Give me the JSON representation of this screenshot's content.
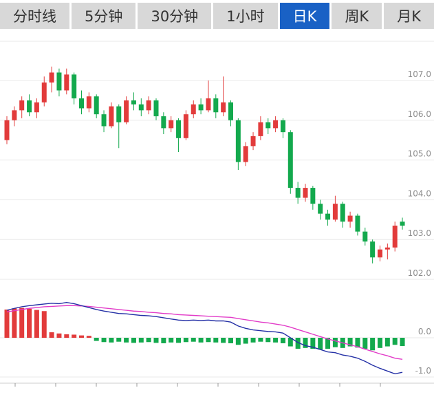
{
  "tabs": {
    "active_index": 4,
    "items": [
      {
        "id": "time-share",
        "label": "分时线"
      },
      {
        "id": "5min",
        "label": "5分钟"
      },
      {
        "id": "30min",
        "label": "30分钟"
      },
      {
        "id": "1hour",
        "label": "1小时"
      },
      {
        "id": "daily-k",
        "label": "日K"
      },
      {
        "id": "weekly-k",
        "label": "周K"
      },
      {
        "id": "monthly-k",
        "label": "月K"
      }
    ]
  },
  "colors": {
    "up": "#e23b3b",
    "down": "#13a94d",
    "dif_line": "#2430a6",
    "dea_line": "#e23bc8",
    "grid": "#e8e8e8",
    "axis_line": "#cccccc",
    "axis_tick": "#999999",
    "axis_label": "#8c8c8c",
    "tab_bg": "#d8d8d8",
    "tab_text": "#333333",
    "tab_active_bg": "#1961c5",
    "tab_active_text": "#ffffff"
  },
  "chart_data": [
    {
      "type": "candlestick",
      "panel": "price",
      "convention": "red = up (close >= open), green = down",
      "ylim": [
        101.7,
        108.1
      ],
      "axis_ticks": [
        {
          "label": "107.0",
          "value": 107.0
        },
        {
          "label": "106.0",
          "value": 106.0
        },
        {
          "label": "105.0",
          "value": 105.0
        },
        {
          "label": "104.0",
          "value": 104.0
        },
        {
          "label": "103.0",
          "value": 103.0
        },
        {
          "label": "102.0",
          "value": 102.0
        }
      ],
      "candles": [
        [
          105.5,
          106.1,
          105.4,
          106.0
        ],
        [
          106.0,
          106.35,
          105.85,
          106.25
        ],
        [
          106.25,
          106.6,
          106.05,
          106.5
        ],
        [
          106.5,
          106.65,
          106.1,
          106.2
        ],
        [
          106.2,
          106.55,
          106.05,
          106.45
        ],
        [
          106.45,
          107.1,
          106.35,
          106.95
        ],
        [
          106.95,
          107.35,
          106.7,
          107.2
        ],
        [
          107.2,
          107.3,
          106.6,
          106.75
        ],
        [
          106.75,
          107.3,
          106.65,
          107.15
        ],
        [
          107.15,
          107.2,
          106.4,
          106.55
        ],
        [
          106.55,
          106.75,
          106.15,
          106.3
        ],
        [
          106.3,
          106.7,
          106.2,
          106.6
        ],
        [
          106.6,
          106.65,
          106.05,
          106.15
        ],
        [
          106.15,
          106.25,
          105.7,
          105.85
        ],
        [
          105.85,
          106.45,
          105.8,
          106.35
        ],
        [
          106.35,
          106.4,
          105.3,
          105.95
        ],
        [
          105.95,
          106.6,
          105.9,
          106.5
        ],
        [
          106.5,
          106.7,
          106.25,
          106.4
        ],
        [
          106.4,
          106.55,
          106.1,
          106.25
        ],
        [
          106.25,
          106.6,
          106.15,
          106.5
        ],
        [
          106.5,
          106.55,
          106.0,
          106.1
        ],
        [
          106.1,
          106.2,
          105.65,
          105.8
        ],
        [
          105.8,
          106.1,
          105.7,
          106.0
        ],
        [
          106.0,
          106.05,
          105.2,
          105.55
        ],
        [
          105.55,
          106.25,
          105.5,
          106.15
        ],
        [
          106.15,
          106.5,
          106.05,
          106.4
        ],
        [
          106.4,
          106.55,
          106.15,
          106.25
        ],
        [
          106.25,
          107.0,
          106.2,
          106.55
        ],
        [
          106.55,
          106.65,
          106.05,
          106.2
        ],
        [
          106.2,
          107.1,
          106.1,
          106.45
        ],
        [
          106.45,
          106.5,
          105.85,
          106.0
        ],
        [
          106.0,
          106.05,
          104.75,
          104.95
        ],
        [
          104.95,
          105.45,
          104.85,
          105.35
        ],
        [
          105.35,
          105.7,
          105.25,
          105.6
        ],
        [
          105.6,
          106.1,
          105.5,
          105.95
        ],
        [
          105.95,
          106.05,
          105.65,
          105.8
        ],
        [
          105.8,
          106.1,
          105.7,
          106.0
        ],
        [
          106.0,
          106.05,
          105.55,
          105.7
        ],
        [
          105.7,
          105.75,
          104.15,
          104.3
        ],
        [
          104.3,
          104.45,
          103.9,
          104.05
        ],
        [
          104.05,
          104.4,
          103.95,
          104.3
        ],
        [
          104.3,
          104.35,
          103.75,
          103.9
        ],
        [
          103.9,
          104.0,
          103.5,
          103.65
        ],
        [
          103.65,
          103.75,
          103.35,
          103.5
        ],
        [
          103.5,
          104.1,
          103.45,
          103.9
        ],
        [
          103.9,
          103.95,
          103.3,
          103.45
        ],
        [
          103.45,
          103.7,
          103.3,
          103.6
        ],
        [
          103.6,
          103.65,
          103.1,
          103.2
        ],
        [
          103.2,
          103.3,
          102.85,
          102.95
        ],
        [
          102.95,
          103.0,
          102.4,
          102.55
        ],
        [
          102.55,
          102.85,
          102.45,
          102.75
        ],
        [
          102.75,
          102.9,
          102.5,
          102.8
        ],
        [
          102.8,
          103.45,
          102.7,
          103.35
        ],
        [
          103.45,
          103.55,
          103.25,
          103.35
        ]
      ]
    },
    {
      "type": "bar+line",
      "panel": "macd",
      "ylim": [
        -1.2,
        1.05
      ],
      "axis_ticks": [
        {
          "label": "0.0",
          "value": 0.0
        },
        {
          "label": "-1.0",
          "value": -1.0
        }
      ],
      "histogram": [
        0.72,
        0.75,
        0.76,
        0.74,
        0.71,
        0.68,
        0.14,
        0.11,
        0.09,
        0.08,
        0.06,
        0.05,
        -0.08,
        -0.11,
        -0.12,
        -0.1,
        -0.12,
        -0.13,
        -0.12,
        -0.11,
        -0.13,
        -0.14,
        -0.12,
        -0.13,
        -0.11,
        -0.1,
        -0.12,
        -0.11,
        -0.12,
        -0.13,
        -0.14,
        -0.18,
        -0.15,
        -0.12,
        -0.1,
        -0.11,
        -0.12,
        -0.14,
        -0.22,
        -0.28,
        -0.26,
        -0.28,
        -0.3,
        -0.28,
        -0.24,
        -0.26,
        -0.22,
        -0.25,
        -0.28,
        -0.32,
        -0.26,
        -0.22,
        -0.18,
        -0.21
      ],
      "series": [
        {
          "name": "DIF",
          "color_key": "dif_line",
          "values": [
            0.7,
            0.75,
            0.79,
            0.82,
            0.84,
            0.86,
            0.88,
            0.87,
            0.9,
            0.87,
            0.82,
            0.77,
            0.72,
            0.68,
            0.65,
            0.62,
            0.61,
            0.59,
            0.57,
            0.56,
            0.54,
            0.51,
            0.48,
            0.45,
            0.44,
            0.45,
            0.44,
            0.45,
            0.43,
            0.43,
            0.4,
            0.3,
            0.24,
            0.2,
            0.18,
            0.16,
            0.15,
            0.12,
            0.0,
            -0.12,
            -0.2,
            -0.24,
            -0.3,
            -0.36,
            -0.38,
            -0.44,
            -0.47,
            -0.52,
            -0.6,
            -0.7,
            -0.78,
            -0.85,
            -0.92,
            -0.88
          ]
        },
        {
          "name": "DEA",
          "color_key": "dea_line",
          "values": [
            0.66,
            0.69,
            0.72,
            0.75,
            0.77,
            0.79,
            0.8,
            0.81,
            0.82,
            0.82,
            0.81,
            0.8,
            0.78,
            0.76,
            0.74,
            0.72,
            0.7,
            0.68,
            0.67,
            0.65,
            0.64,
            0.62,
            0.61,
            0.59,
            0.58,
            0.57,
            0.56,
            0.55,
            0.54,
            0.53,
            0.52,
            0.49,
            0.46,
            0.43,
            0.4,
            0.38,
            0.35,
            0.32,
            0.27,
            0.21,
            0.15,
            0.09,
            0.03,
            -0.03,
            -0.08,
            -0.13,
            -0.18,
            -0.23,
            -0.29,
            -0.35,
            -0.41,
            -0.46,
            -0.52,
            -0.55
          ]
        }
      ]
    }
  ]
}
